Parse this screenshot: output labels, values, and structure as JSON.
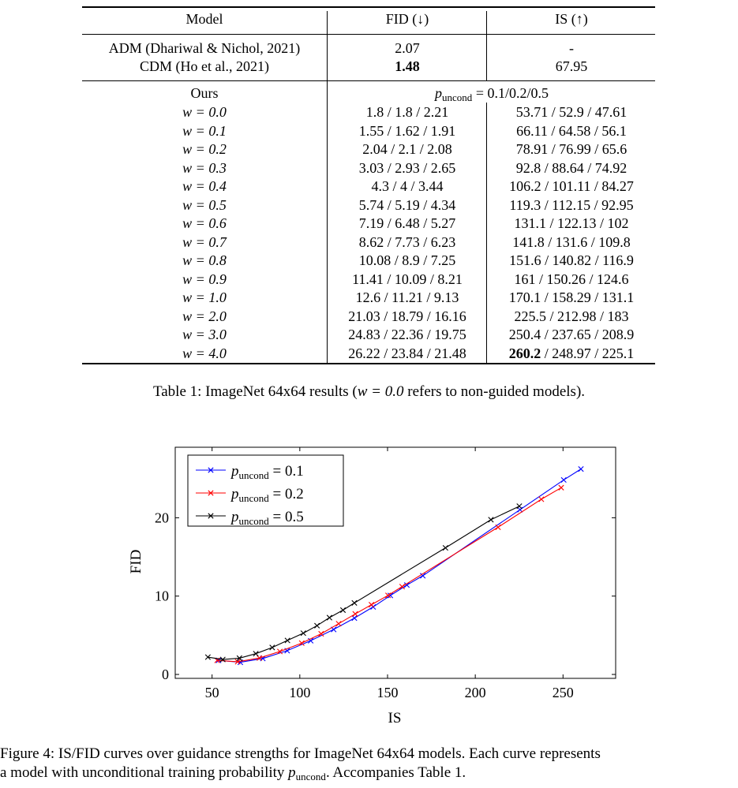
{
  "table": {
    "headers": {
      "model": "Model",
      "fid": "FID (↓)",
      "is": "IS (↑)"
    },
    "baselines": [
      {
        "model": "ADM (Dhariwal & Nichol, 2021)",
        "fid": "2.07",
        "is": "-"
      },
      {
        "model": "CDM (Ho et al., 2021)",
        "fid": "1.48",
        "is": "67.95"
      }
    ],
    "ours_label": "Ours",
    "p_symbol": "p",
    "p_subscript": "uncond",
    "p_values": "= 0.1/0.2/0.5",
    "rows": [
      {
        "w": "w = 0.0",
        "fid": "1.8 / 1.8 / 2.21",
        "is": "53.71 / 52.9 / 47.61"
      },
      {
        "w": "w = 0.1",
        "fid": "1.55 / 1.62 / 1.91",
        "is": "66.11 / 64.58 / 56.1"
      },
      {
        "w": "w = 0.2",
        "fid": "2.04 / 2.1 / 2.08",
        "is": "78.91 / 76.99 / 65.6"
      },
      {
        "w": "w = 0.3",
        "fid": "3.03 / 2.93 / 2.65",
        "is": "92.8 / 88.64 / 74.92"
      },
      {
        "w": "w = 0.4",
        "fid": "4.3 / 4 / 3.44",
        "is": "106.2 / 101.11 / 84.27"
      },
      {
        "w": "w = 0.5",
        "fid": "5.74 / 5.19 / 4.34",
        "is": "119.3 / 112.15 / 92.95"
      },
      {
        "w": "w = 0.6",
        "fid": "7.19 / 6.48 / 5.27",
        "is": "131.1 / 122.13 / 102"
      },
      {
        "w": "w = 0.7",
        "fid": "8.62 / 7.73 / 6.23",
        "is": "141.8 / 131.6 / 109.8"
      },
      {
        "w": "w = 0.8",
        "fid": "10.08 / 8.9 / 7.25",
        "is": "151.6 / 140.82 / 116.9"
      },
      {
        "w": "w = 0.9",
        "fid": "11.41 / 10.09 / 8.21",
        "is": "161 / 150.26 / 124.6"
      },
      {
        "w": "w = 1.0",
        "fid": "12.6 / 11.21 / 9.13",
        "is": "170.1 / 158.29 / 131.1"
      },
      {
        "w": "w = 2.0",
        "fid": "21.03 / 18.79 / 16.16",
        "is": "225.5 / 212.98 / 183"
      },
      {
        "w": "w = 3.0",
        "fid": "24.83 / 22.36 / 19.75",
        "is": "250.4 / 237.65 / 208.9"
      },
      {
        "w": "w = 4.0",
        "fid": "26.22 / 23.84 / 21.48",
        "is_bold": "260.2",
        "is_rest": " / 248.97 / 225.1"
      }
    ],
    "caption_prefix": "Table 1: ImageNet 64x64 results (",
    "caption_math": "w = 0.0",
    "caption_suffix": " refers to non-guided models)."
  },
  "figure": {
    "caption_line1": "Figure 4: IS/FID curves over guidance strengths for ImageNet 64x64 models. Each curve represents",
    "caption_line2_prefix": "a model with unconditional training probability ",
    "caption_line2_suffix": ". Accompanies Table 1."
  },
  "chart_data": {
    "type": "line",
    "xlabel": "IS",
    "ylabel": "FID",
    "xlim": [
      29,
      280
    ],
    "ylim": [
      -0.5,
      29
    ],
    "xticks": [
      50,
      100,
      150,
      200,
      250
    ],
    "yticks": [
      0,
      10,
      20
    ],
    "grid": false,
    "legend_position": "top-left",
    "legend_prefix": "p",
    "legend_subscript": "uncond",
    "series": [
      {
        "name": "= 0.1",
        "color": "#0000ff",
        "marker": "x",
        "x": [
          53.71,
          66.11,
          78.91,
          92.8,
          106.2,
          119.3,
          131.1,
          141.8,
          151.6,
          161,
          170.1,
          225.5,
          250.4,
          260.2
        ],
        "y": [
          1.8,
          1.55,
          2.04,
          3.03,
          4.3,
          5.74,
          7.19,
          8.62,
          10.08,
          11.41,
          12.6,
          21.03,
          24.83,
          26.22
        ]
      },
      {
        "name": "= 0.2",
        "color": "#ff0000",
        "marker": "x",
        "x": [
          52.9,
          64.58,
          76.99,
          88.64,
          101.11,
          112.15,
          122.13,
          131.6,
          140.82,
          150.26,
          158.29,
          212.98,
          237.65,
          248.97
        ],
        "y": [
          1.8,
          1.62,
          2.1,
          2.93,
          4,
          5.19,
          6.48,
          7.73,
          8.9,
          10.09,
          11.21,
          18.79,
          22.36,
          23.84
        ]
      },
      {
        "name": "= 0.5",
        "color": "#000000",
        "marker": "x",
        "x": [
          47.61,
          56.1,
          65.6,
          74.92,
          84.27,
          92.95,
          102,
          109.8,
          116.9,
          124.6,
          131.1,
          183,
          208.9,
          225.1
        ],
        "y": [
          2.21,
          1.91,
          2.08,
          2.65,
          3.44,
          4.34,
          5.27,
          6.23,
          7.25,
          8.21,
          9.13,
          16.16,
          19.75,
          21.48
        ]
      }
    ]
  }
}
